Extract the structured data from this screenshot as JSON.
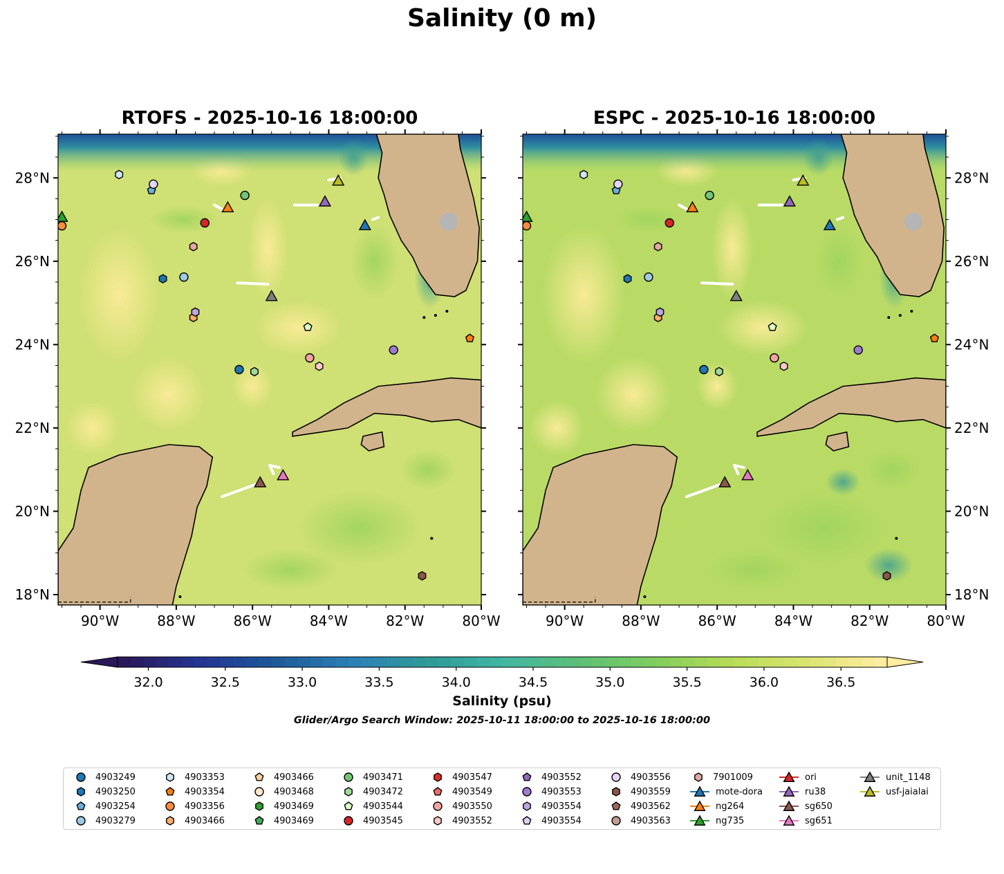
{
  "title": "Salinity (0 m)",
  "panels": [
    {
      "title": "RTOFS - 2025-10-16 18:00:00",
      "model": "RTOFS"
    },
    {
      "title": "ESPC - 2025-10-16 18:00:00",
      "model": "ESPC"
    }
  ],
  "map": {
    "lon_range": [
      -91.1,
      -80
    ],
    "lat_range": [
      17.75,
      29.05
    ],
    "lon_ticks": [
      -90,
      -88,
      -86,
      -84,
      -82,
      -80
    ],
    "lon_tick_labels": [
      "90°W",
      "88°W",
      "86°W",
      "84°W",
      "82°W",
      "80°W"
    ],
    "lat_ticks": [
      18,
      20,
      22,
      24,
      26,
      28
    ],
    "lat_tick_labels": [
      "18°N",
      "20°N",
      "22°N",
      "24°N",
      "26°N",
      "28°N"
    ]
  },
  "colorbar": {
    "min": 31.8,
    "max": 36.8,
    "ticks": [
      32.0,
      32.5,
      33.0,
      33.5,
      34.0,
      34.5,
      35.0,
      35.5,
      36.0,
      36.5
    ],
    "tick_labels": [
      "32.0",
      "32.5",
      "33.0",
      "33.5",
      "34.0",
      "34.5",
      "35.0",
      "35.5",
      "36.0",
      "36.5"
    ],
    "label": "Salinity (psu)",
    "colormap": [
      "#2a1859",
      "#253494",
      "#1d5a9a",
      "#2c7fb8",
      "#2f9a96",
      "#41b6a4",
      "#5cbf77",
      "#7fcd5e",
      "#b5dc57",
      "#d9e46e",
      "#ffeda0"
    ]
  },
  "search_window": "Glider/Argo Search Window: 2025-10-11 18:00:00 to 2025-10-16 18:00:00",
  "colors": {
    "land": "#d2b48c",
    "ocean_rtofs": "#cfe074",
    "ocean_espc": "#b9db66",
    "lake": "#a4c2e6",
    "track": "#ffffff"
  },
  "legend": [
    {
      "label": "4903249",
      "marker": "circle",
      "color": "#1f77b4"
    },
    {
      "label": "4903250",
      "marker": "hexagon",
      "color": "#1f77b4"
    },
    {
      "label": "4903254",
      "marker": "pentagon",
      "color": "#6baed6"
    },
    {
      "label": "4903279",
      "marker": "circle",
      "color": "#9ecae1"
    },
    {
      "label": "4903353",
      "marker": "hexagon",
      "color": "#cfe6f5"
    },
    {
      "label": "4903354",
      "marker": "pentagon",
      "color": "#ff7f0e"
    },
    {
      "label": "4903356",
      "marker": "circle",
      "color": "#fd8d3c"
    },
    {
      "label": "4903466",
      "marker": "hexagon",
      "color": "#fdae6b"
    },
    {
      "label": "4903466",
      "marker": "pentagon",
      "color": "#fdd0a2"
    },
    {
      "label": "4903468",
      "marker": "circle",
      "color": "#fee6ce"
    },
    {
      "label": "4903469",
      "marker": "hexagon",
      "color": "#2ca02c"
    },
    {
      "label": "4903469",
      "marker": "pentagon",
      "color": "#41ab5d"
    },
    {
      "label": "4903471",
      "marker": "circle",
      "color": "#74c476"
    },
    {
      "label": "4903472",
      "marker": "hexagon",
      "color": "#a1d99b"
    },
    {
      "label": "4903544",
      "marker": "pentagon",
      "color": "#d9fcc8"
    },
    {
      "label": "4903545",
      "marker": "circle",
      "color": "#d62728"
    },
    {
      "label": "4903547",
      "marker": "hexagon",
      "color": "#de2d26"
    },
    {
      "label": "4903549",
      "marker": "pentagon",
      "color": "#ef6a6a"
    },
    {
      "label": "4903550",
      "marker": "circle",
      "color": "#f4a3a3"
    },
    {
      "label": "4903552",
      "marker": "hexagon",
      "color": "#fcc8c8"
    },
    {
      "label": "4903552",
      "marker": "pentagon",
      "color": "#9467bd"
    },
    {
      "label": "4903553",
      "marker": "circle",
      "color": "#9e7bd0"
    },
    {
      "label": "4903554",
      "marker": "hexagon",
      "color": "#bca4e0"
    },
    {
      "label": "4903554",
      "marker": "pentagon",
      "color": "#ddd0f2"
    },
    {
      "label": "4903556",
      "marker": "circle",
      "color": "#e6d5fa"
    },
    {
      "label": "4903559",
      "marker": "hexagon",
      "color": "#8c564b"
    },
    {
      "label": "4903562",
      "marker": "pentagon",
      "color": "#a0685a"
    },
    {
      "label": "4903563",
      "marker": "circle",
      "color": "#c49c94"
    },
    {
      "label": "7901009",
      "marker": "hexagon",
      "color": "#e0a8a0"
    },
    {
      "label": "mote-dora",
      "marker": "triangle-line",
      "color": "#1f77b4"
    },
    {
      "label": "ng264",
      "marker": "triangle-line",
      "color": "#ff7f0e"
    },
    {
      "label": "ng735",
      "marker": "triangle-line",
      "color": "#2ca02c"
    },
    {
      "label": "ori",
      "marker": "triangle-line",
      "color": "#d62728"
    },
    {
      "label": "ru38",
      "marker": "triangle-line",
      "color": "#9467bd"
    },
    {
      "label": "sg650",
      "marker": "triangle-line",
      "color": "#8c564b"
    },
    {
      "label": "sg651",
      "marker": "triangle-line",
      "color": "#e377c2"
    },
    {
      "label": "unit_1148",
      "marker": "triangle-line",
      "color": "#7f7f7f"
    },
    {
      "label": "usf-jaialai",
      "marker": "triangle-line",
      "color": "#bcbd22"
    }
  ],
  "argo_floats": [
    {
      "id": "4903249",
      "lon": -86.35,
      "lat": 23.4
    },
    {
      "id": "4903250",
      "lon": -88.35,
      "lat": 25.58
    },
    {
      "id": "4903254",
      "lon": -88.65,
      "lat": 27.7
    },
    {
      "id": "4903279",
      "lon": -87.8,
      "lat": 25.62
    },
    {
      "id": "4903353",
      "lon": -89.5,
      "lat": 28.08
    },
    {
      "id": "4903354",
      "lon": -80.3,
      "lat": 24.15
    },
    {
      "id": "4903356",
      "lon": -91.0,
      "lat": 26.85
    },
    {
      "id": "4903466",
      "lon": -87.55,
      "lat": 24.65
    },
    {
      "id": "4903472",
      "lon": -85.95,
      "lat": 23.35
    },
    {
      "id": "4903471",
      "lon": -86.2,
      "lat": 27.58
    },
    {
      "id": "4903545",
      "lon": -87.25,
      "lat": 26.92
    },
    {
      "id": "4903544",
      "lon": -84.55,
      "lat": 24.42
    },
    {
      "id": "4903550",
      "lon": -84.5,
      "lat": 23.68
    },
    {
      "id": "4903552",
      "lon": -84.25,
      "lat": 23.48
    },
    {
      "id": "4903553",
      "lon": -82.3,
      "lat": 23.87
    },
    {
      "id": "4903554",
      "lon": -87.5,
      "lat": 24.78
    },
    {
      "id": "4903556",
      "lon": -88.6,
      "lat": 27.85
    },
    {
      "id": "4903559",
      "lon": -81.55,
      "lat": 18.45
    },
    {
      "id": "7901009",
      "lon": -87.55,
      "lat": 26.35
    }
  ],
  "gliders": [
    {
      "id": "mote-dora",
      "lon": -83.05,
      "lat": 26.85
    },
    {
      "id": "ng264",
      "lon": -86.65,
      "lat": 27.28
    },
    {
      "id": "ng735",
      "lon": -91.0,
      "lat": 27.05
    },
    {
      "id": "ru38",
      "lon": -84.1,
      "lat": 27.42
    },
    {
      "id": "sg650",
      "lon": -85.8,
      "lat": 20.68
    },
    {
      "id": "sg651",
      "lon": -85.2,
      "lat": 20.85
    },
    {
      "id": "unit_1148",
      "lon": -85.5,
      "lat": 25.15
    },
    {
      "id": "usf-jaialai",
      "lon": -83.75,
      "lat": 27.92
    }
  ]
}
